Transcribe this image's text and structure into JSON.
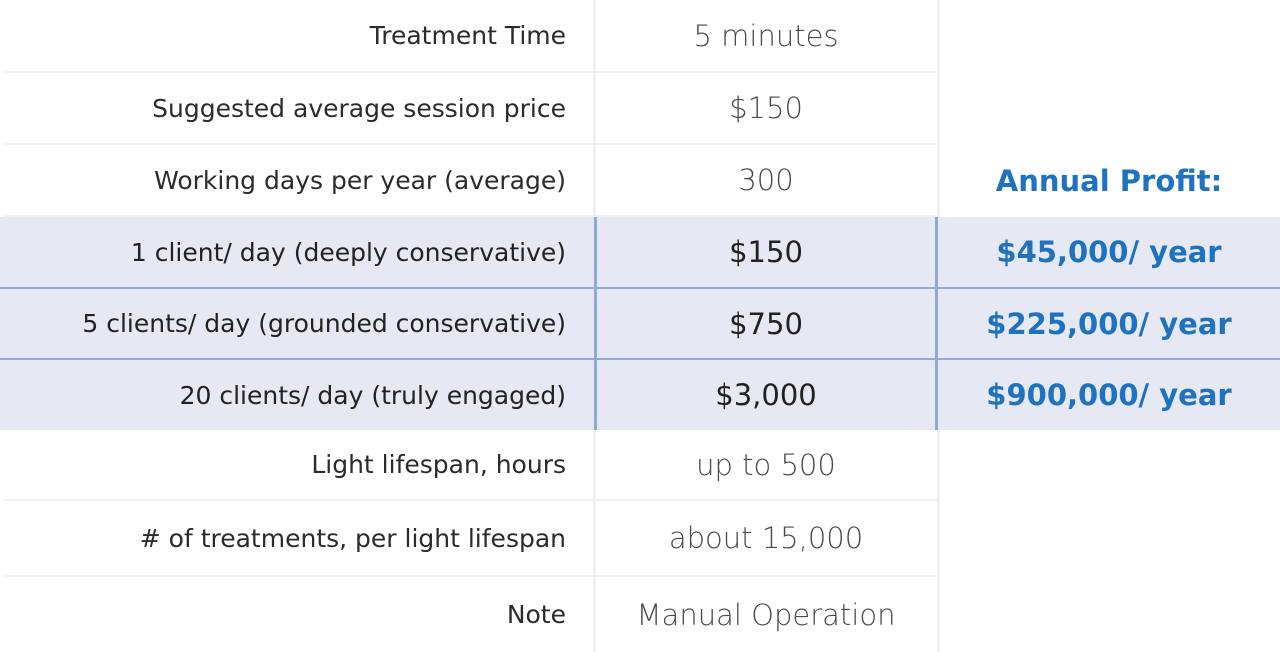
{
  "rows": [
    {
      "label": "Treatment Time",
      "value": "5 minutes",
      "profit": ""
    },
    {
      "label": "Suggested average session price",
      "value": "$150",
      "profit": ""
    },
    {
      "label": "Working days per year (average)",
      "value": "300",
      "profit": "Annual Profit:"
    },
    {
      "label": "1 client/ day (deeply conservative)",
      "value": "$150",
      "profit": "$45,000/ year"
    },
    {
      "label": "5 clients/ day (grounded conservative)",
      "value": "$750",
      "profit": "$225,000/ year"
    },
    {
      "label": "20 clients/ day (truly engaged)",
      "value": "$3,000",
      "profit": "$900,000/ year"
    },
    {
      "label": "Light lifespan, hours",
      "value": "up to 500",
      "profit": ""
    },
    {
      "label": "# of treatments, per light lifespan",
      "value": "about 15,000",
      "profit": ""
    },
    {
      "label": "Note",
      "value": "Manual Operation",
      "profit": ""
    }
  ],
  "colors": {
    "accent": "#1f72c0",
    "highlight_bg": "#e6e8f3",
    "highlight_border": "#8eaad6"
  }
}
